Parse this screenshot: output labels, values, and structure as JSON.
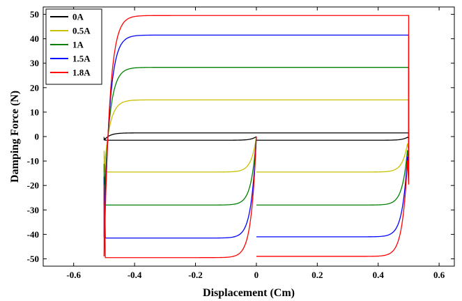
{
  "chart_data": {
    "type": "line",
    "title": "",
    "xlabel": "Displacement (Cm)",
    "ylabel": "Damping Force (N)",
    "xlim": [
      -0.7,
      0.65
    ],
    "ylim": [
      -53,
      53
    ],
    "x_ticks": [
      -0.6,
      -0.4,
      -0.2,
      0,
      0.2,
      0.4,
      0.6
    ],
    "x_tick_labels": [
      "-0.6",
      "-0.4",
      "-0.2",
      "0",
      "0.2",
      "0.4",
      "0.6"
    ],
    "y_ticks": [
      -50,
      -40,
      -30,
      -20,
      -10,
      0,
      10,
      20,
      30,
      40,
      50
    ],
    "y_tick_labels": [
      "-50",
      "-40",
      "-30",
      "-20",
      "-10",
      "0",
      "10",
      "20",
      "30",
      "40",
      "50"
    ],
    "grid": false,
    "legend_position": "top-left",
    "series": [
      {
        "name": "0A",
        "color": "#000000",
        "force_upper": 1.5,
        "force_lower": -1.5,
        "force_mid": -1.5,
        "x_extent": [
          -0.5,
          0.5
        ]
      },
      {
        "name": "0.5A",
        "color": "#c8c000",
        "force_upper": 15,
        "force_lower": -14.5,
        "force_mid": -14.5,
        "x_extent": [
          -0.5,
          0.5
        ]
      },
      {
        "name": "1A",
        "color": "#008000",
        "force_upper": 28.3,
        "force_lower": -28,
        "force_mid": -28,
        "x_extent": [
          -0.5,
          0.5
        ]
      },
      {
        "name": "1.5A",
        "color": "#0000ff",
        "force_upper": 41.5,
        "force_lower": -41,
        "force_mid": -41.5,
        "x_extent": [
          -0.5,
          0.5
        ]
      },
      {
        "name": "1.8A",
        "color": "#ff0000",
        "force_upper": 49.5,
        "force_lower": -49,
        "force_mid": -49.5,
        "x_extent": [
          -0.5,
          0.5
        ]
      }
    ]
  }
}
